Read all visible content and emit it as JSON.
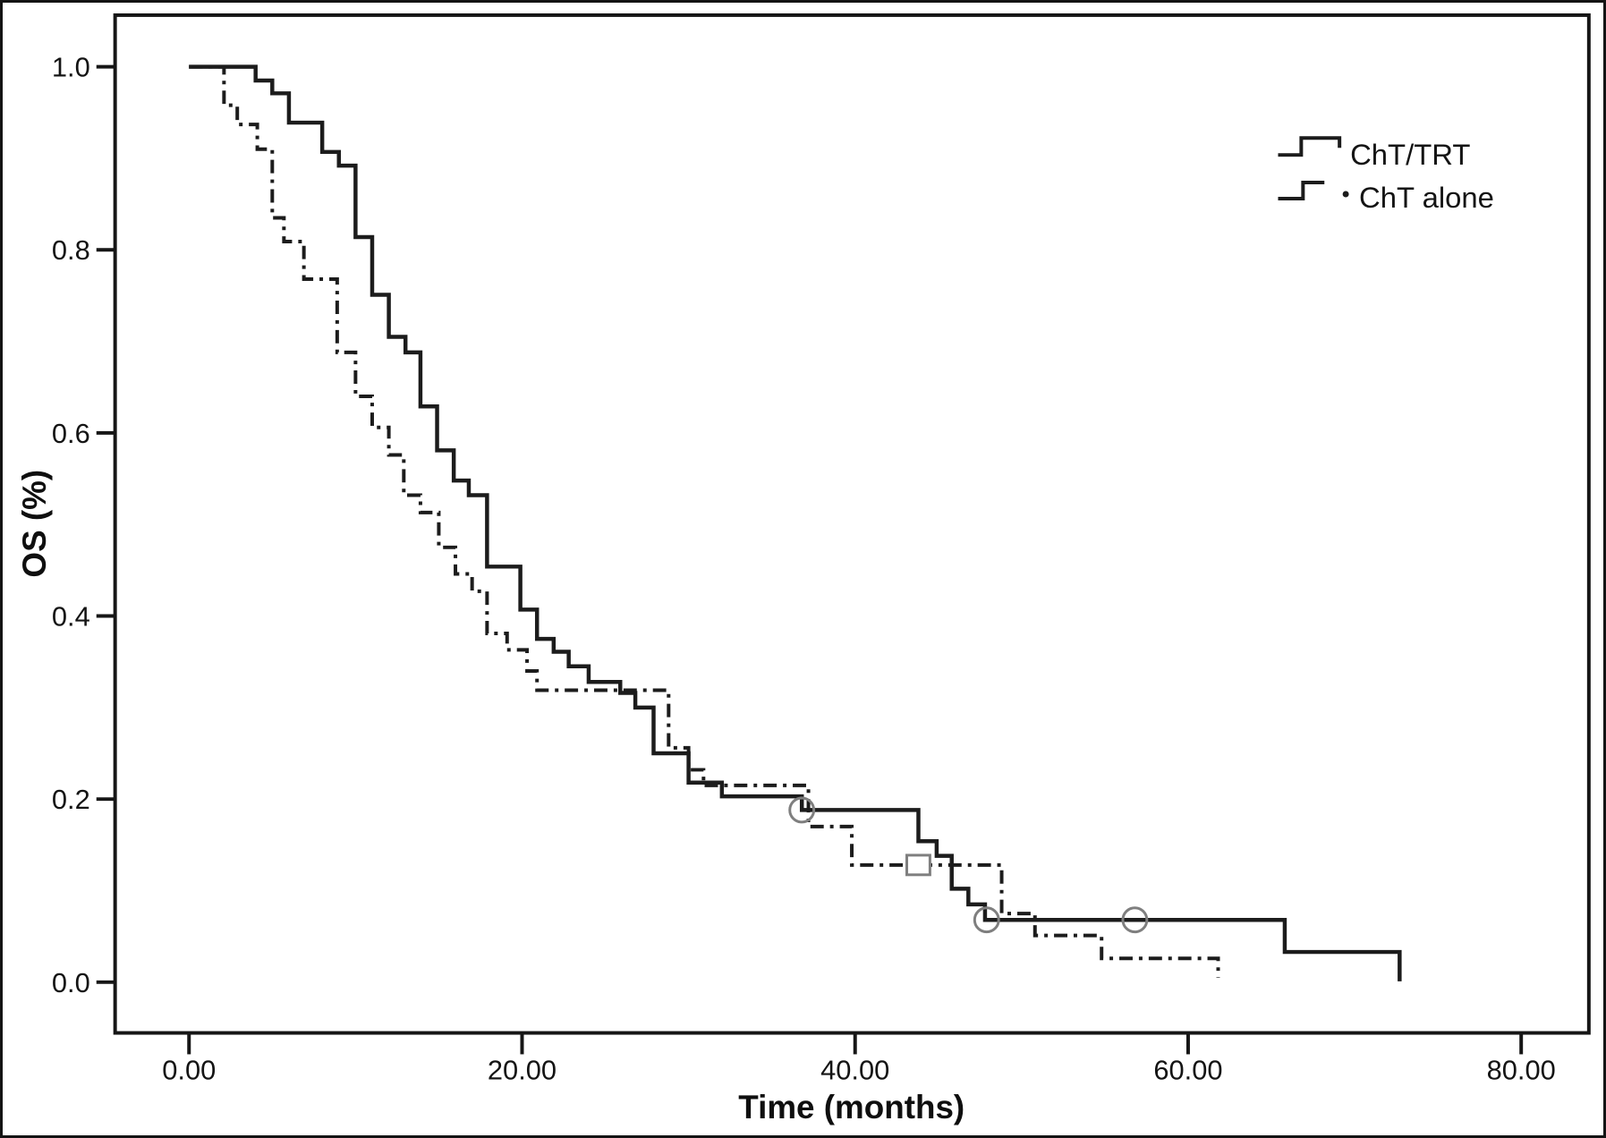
{
  "chart_data": {
    "type": "line",
    "subtype": "kaplan-meier-step-plot",
    "title": "",
    "xlabel": "Time (months)",
    "ylabel": "OS (%)",
    "x_ticks": [
      0,
      20,
      40,
      60,
      80
    ],
    "x_tick_labels": [
      "0.00",
      "20.00",
      "40.00",
      "60.00",
      "80.00"
    ],
    "y_ticks": [
      0.0,
      0.2,
      0.4,
      0.6,
      0.8,
      1.0
    ],
    "y_tick_labels": [
      "0.0",
      "0.2",
      "0.4",
      "0.6",
      "0.8",
      "1.0"
    ],
    "xlim": [
      -4.4,
      84.1
    ],
    "ylim": [
      -0.055,
      1.057
    ],
    "grid": false,
    "legend_position": "upper-right",
    "line_color": "#1c1c1c",
    "censor_marker_color": "#7f7f7f",
    "series": [
      {
        "name": "ChT/TRT",
        "style": "solid",
        "steps": [
          [
            0,
            1.0
          ],
          [
            4.0,
            0.985
          ],
          [
            5.0,
            0.971
          ],
          [
            6.0,
            0.939
          ],
          [
            8.0,
            0.907
          ],
          [
            9.0,
            0.892
          ],
          [
            10.0,
            0.814
          ],
          [
            11.0,
            0.751
          ],
          [
            12.0,
            0.705
          ],
          [
            13.0,
            0.688
          ],
          [
            13.9,
            0.629
          ],
          [
            14.9,
            0.581
          ],
          [
            15.9,
            0.548
          ],
          [
            16.8,
            0.532
          ],
          [
            17.9,
            0.454
          ],
          [
            19.9,
            0.407
          ],
          [
            20.9,
            0.375
          ],
          [
            21.9,
            0.361
          ],
          [
            22.8,
            0.345
          ],
          [
            24.0,
            0.328
          ],
          [
            25.9,
            0.316
          ],
          [
            26.8,
            0.3
          ],
          [
            27.9,
            0.25
          ],
          [
            30.0,
            0.218
          ],
          [
            32.0,
            0.203
          ],
          [
            36.8,
            0.188
          ],
          [
            43.8,
            0.154
          ],
          [
            44.9,
            0.138
          ],
          [
            45.8,
            0.102
          ],
          [
            46.8,
            0.085
          ],
          [
            47.8,
            0.068
          ],
          [
            65.8,
            0.033
          ],
          [
            72.7,
            0.001
          ]
        ],
        "censor_marker_shape": "circle",
        "censor_points": [
          [
            36.8,
            0.188
          ],
          [
            47.9,
            0.068
          ],
          [
            56.8,
            0.068
          ]
        ]
      },
      {
        "name": "ChT alone",
        "style": "dash-dot",
        "steps": [
          [
            0,
            1.0
          ],
          [
            2.1,
            0.958
          ],
          [
            2.9,
            0.937
          ],
          [
            4.1,
            0.91
          ],
          [
            5.0,
            0.835
          ],
          [
            5.7,
            0.809
          ],
          [
            6.9,
            0.768
          ],
          [
            8.9,
            0.688
          ],
          [
            10.0,
            0.64
          ],
          [
            11.0,
            0.606
          ],
          [
            12.0,
            0.576
          ],
          [
            12.9,
            0.532
          ],
          [
            13.9,
            0.513
          ],
          [
            15.0,
            0.475
          ],
          [
            16.0,
            0.446
          ],
          [
            17.0,
            0.427
          ],
          [
            17.9,
            0.381
          ],
          [
            19.1,
            0.363
          ],
          [
            20.3,
            0.34
          ],
          [
            20.9,
            0.319
          ],
          [
            28.8,
            0.256
          ],
          [
            30.0,
            0.232
          ],
          [
            30.9,
            0.215
          ],
          [
            37.2,
            0.17
          ],
          [
            39.8,
            0.128
          ],
          [
            48.8,
            0.075
          ],
          [
            50.8,
            0.051
          ],
          [
            54.8,
            0.026
          ],
          [
            61.8,
            0.005
          ]
        ],
        "censor_marker_shape": "square",
        "censor_points": [
          [
            43.8,
            0.128
          ]
        ]
      }
    ]
  },
  "legend": {
    "items": [
      {
        "label": "ChT/TRT"
      },
      {
        "label": "ChT alone"
      }
    ]
  }
}
